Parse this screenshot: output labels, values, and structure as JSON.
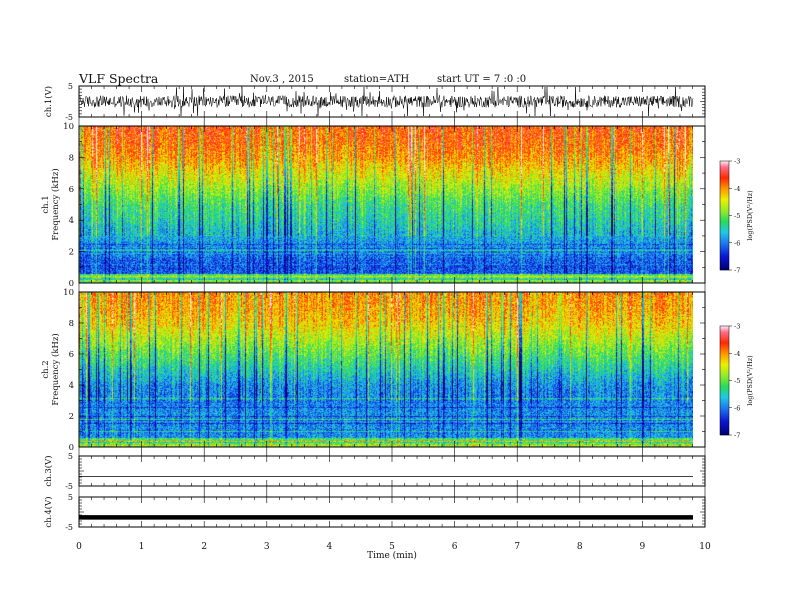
{
  "header": {
    "title": "VLF Spectra",
    "date": "Nov.3 , 2015",
    "station": "station=ATH",
    "start": "start UT = 7 :0 :0"
  },
  "axes": {
    "time_label": "Time (min)",
    "time_ticks": [
      "0",
      "1",
      "2",
      "3",
      "4",
      "5",
      "6",
      "7",
      "8",
      "9",
      "10"
    ],
    "freq_ticks": [
      "0",
      "2",
      "4",
      "6",
      "8",
      "10"
    ],
    "ch1_label": "ch.1(V)",
    "ch3_label": "ch.3(V)",
    "ch4_label": "ch.4(V)",
    "spec1_label_a": "ch.1",
    "spec2_label_a": "ch.2",
    "spec_label_b": "Frequency (kHz)",
    "wave_tick_top": "5",
    "wave_tick_bottom": "-5",
    "cbar_label": "log(PSD(V²/Hz)",
    "cbar_ticks": [
      "-3",
      "-4",
      "-5",
      "-6",
      "-7"
    ]
  },
  "colors": {
    "high": "#ff2200",
    "orange": "#ff9900",
    "yellow": "#e5f000",
    "green": "#22dd44",
    "cyan": "#22ccdd",
    "blue": "#1133dd",
    "navy": "#000099"
  },
  "chart_data": [
    {
      "type": "line",
      "panel": "ch.1 waveform",
      "ylabel": "ch.1(V)",
      "ylim": [
        -5,
        5
      ],
      "xlim": [
        0,
        10
      ],
      "x_unit": "min",
      "signal": "broadband noise centered near 0 V, typical amplitude about ±1 V with bursts to about ±2.5 V",
      "data_end_min": 9.8
    },
    {
      "type": "heatmap",
      "panel": "ch.1 spectrogram",
      "ylabel": "Frequency (kHz)",
      "xlabel": "Time (min)",
      "xlim": [
        0,
        10
      ],
      "ylim": [
        0,
        10
      ],
      "colorbar": {
        "label": "log(PSD(V²/Hz)",
        "range": [
          -7,
          -3
        ]
      },
      "frequency_profile_kHz": [
        0,
        1,
        2,
        3,
        4,
        5,
        6,
        7,
        8,
        9,
        10
      ],
      "mean_logPSD_profile": [
        -6.0,
        -6.2,
        -6.0,
        -5.7,
        -5.4,
        -5.2,
        -4.8,
        -4.4,
        -4.0,
        -3.8,
        -3.7
      ]
    },
    {
      "type": "heatmap",
      "panel": "ch.2 spectrogram",
      "ylabel": "Frequency (kHz)",
      "xlabel": "Time (min)",
      "xlim": [
        0,
        10
      ],
      "ylim": [
        0,
        10
      ],
      "colorbar": {
        "label": "log(PSD(V²/Hz)",
        "range": [
          -7,
          -3
        ]
      },
      "frequency_profile_kHz": [
        0,
        1,
        2,
        3,
        4,
        5,
        6,
        7,
        8,
        9,
        10
      ],
      "mean_logPSD_profile": [
        -5.6,
        -5.9,
        -5.8,
        -5.9,
        -5.8,
        -5.4,
        -5.0,
        -4.6,
        -4.2,
        -4.0,
        -3.9
      ]
    },
    {
      "type": "line",
      "panel": "ch.3 waveform",
      "ylabel": "ch.3(V)",
      "ylim": [
        -5,
        5
      ],
      "xlim": [
        0,
        10
      ],
      "level_V": -1.8,
      "data_end_min": 9.8
    },
    {
      "type": "line",
      "panel": "ch.4 waveform",
      "ylabel": "ch.4(V)",
      "ylim": [
        -5,
        5
      ],
      "xlim": [
        0,
        10
      ],
      "level_V": -1.8,
      "data_end_min": 9.8
    }
  ]
}
